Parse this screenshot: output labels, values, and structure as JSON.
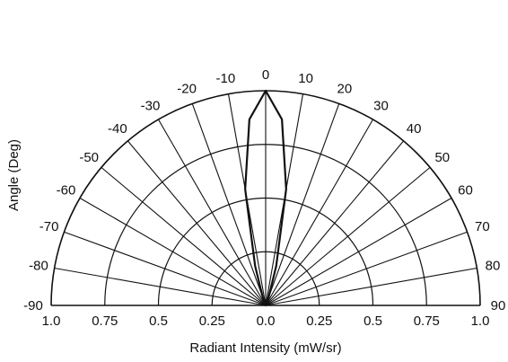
{
  "chart_data": {
    "type": "polar",
    "subtype": "half-polar radiation pattern",
    "xlabel": "Radiant Intensity (mW/sr)",
    "ylabel": "Angle (Deg)",
    "radial_range": [
      0,
      1.0
    ],
    "radial_ticks": [
      1.0,
      0.75,
      0.5,
      0.25,
      0.0,
      0.25,
      0.5,
      0.75,
      1.0
    ],
    "radial_tick_labels": [
      "1.0",
      "0.75",
      "0.5",
      "0.25",
      "0.0",
      "0.25",
      "0.5",
      "0.75",
      "1.0"
    ],
    "radial_gridlines": [
      0.25,
      0.5,
      0.75,
      1.0
    ],
    "angle_range": [
      -90,
      90
    ],
    "angle_ticks": [
      -90,
      -80,
      -70,
      -60,
      -50,
      -40,
      -30,
      -20,
      -10,
      0,
      10,
      20,
      30,
      40,
      50,
      60,
      70,
      80,
      90
    ],
    "angle_tick_labels": [
      "-90",
      "-80",
      "-70",
      "-60",
      "-50",
      "-40",
      "-30",
      "-20",
      "-10",
      "0",
      "10",
      "20",
      "30",
      "40",
      "50",
      "60",
      "70",
      "80",
      "90"
    ],
    "grid": true,
    "series": [
      {
        "angles": [
          -90,
          -80,
          -70,
          -60,
          -50,
          -40,
          -30,
          -25,
          -20,
          -15,
          -10,
          -5,
          0,
          5,
          10,
          15,
          20,
          25,
          30,
          40,
          50,
          60,
          70,
          80,
          90
        ],
        "values": [
          0,
          0,
          0,
          0,
          0,
          0,
          0,
          0.005,
          0.04,
          0.19,
          0.55,
          0.87,
          1.0,
          0.87,
          0.55,
          0.19,
          0.04,
          0.005,
          0,
          0,
          0,
          0,
          0,
          0,
          0
        ]
      }
    ],
    "colors": {
      "line": "#111111",
      "grid": "#111111",
      "background": "#ffffff"
    }
  }
}
